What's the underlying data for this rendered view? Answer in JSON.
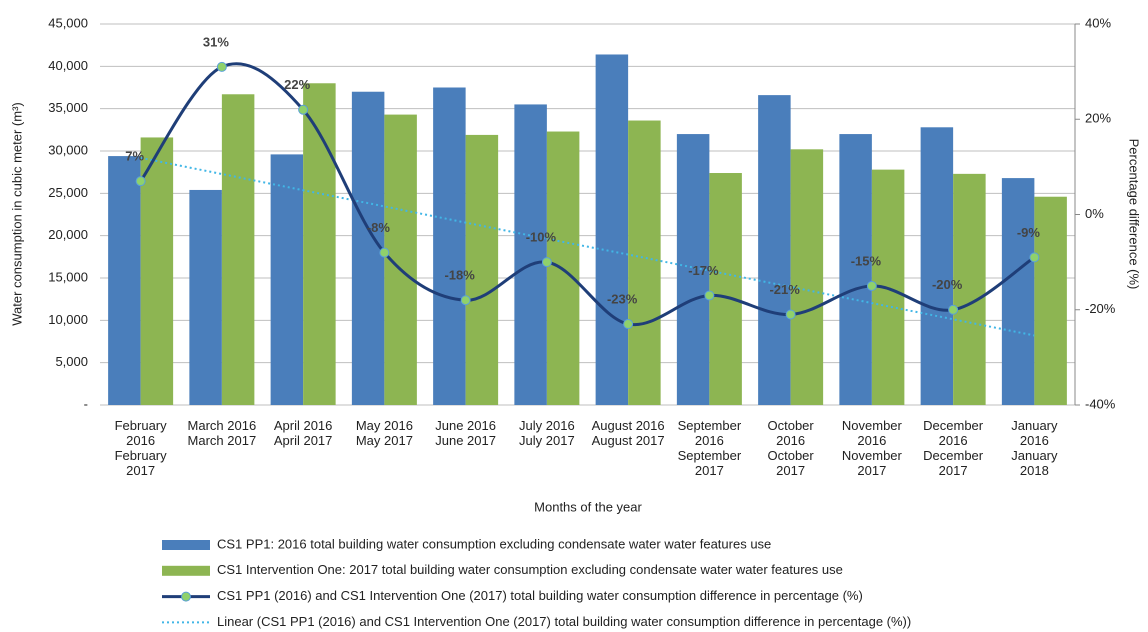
{
  "chart_data": {
    "type": "bar",
    "xlabel": "Months of the year",
    "ylabel": "Water consumption in cubic meter (m³)",
    "y2label": "Percentage difference (%)",
    "categories": [
      "February 2016 February 2017",
      "March 2016 March 2017",
      "April 2016 April 2017",
      "May 2016 May 2017",
      "June 2016 June 2017",
      "July 2016 July 2017",
      "August 2016 August 2017",
      "September 2016 September 2017",
      "October 2016 October 2017",
      "November 2016 November 2017",
      "December 2016 December 2017",
      "January 2016 January 2018"
    ],
    "ylim": [
      0,
      45000
    ],
    "yticks": [
      {
        "value": 0,
        "label": "-"
      },
      {
        "value": 5000,
        "label": "5,000"
      },
      {
        "value": 10000,
        "label": "10,000"
      },
      {
        "value": 15000,
        "label": "15,000"
      },
      {
        "value": 20000,
        "label": "20,000"
      },
      {
        "value": 25000,
        "label": "25,000"
      },
      {
        "value": 30000,
        "label": "30,000"
      },
      {
        "value": 35000,
        "label": "35,000"
      },
      {
        "value": 40000,
        "label": "40,000"
      },
      {
        "value": 45000,
        "label": "45,000"
      }
    ],
    "y2lim": [
      -40,
      40
    ],
    "y2ticks": [
      {
        "value": -40,
        "label": "-40%"
      },
      {
        "value": -20,
        "label": "-20%"
      },
      {
        "value": 0,
        "label": "0%"
      },
      {
        "value": 20,
        "label": "20%"
      },
      {
        "value": 40,
        "label": "40%"
      }
    ],
    "grid": true,
    "series": [
      {
        "name": "CS1 PP1: 2016 total building water consumption excluding condensate water water features use",
        "type": "bar",
        "color": "#4a7ebb",
        "values": [
          29400,
          25400,
          29600,
          37000,
          37500,
          35500,
          41400,
          32000,
          36600,
          32000,
          32800,
          26800
        ]
      },
      {
        "name": "CS1 Intervention One: 2017 total building water consumption excluding condensate water water features use",
        "type": "bar",
        "color": "#8db552",
        "values": [
          31600,
          36700,
          38000,
          34300,
          31900,
          32300,
          33600,
          27400,
          30200,
          27800,
          27300,
          24600
        ]
      },
      {
        "name": "CS1 PP1 (2016) and CS1 Intervention One (2017) total building water consumption difference in percentage (%)",
        "type": "line",
        "axis": "y2",
        "color": "#1f3e78",
        "marker_color": "#8fd16b",
        "values": [
          7,
          31,
          22,
          -8,
          -18,
          -10,
          -23,
          -17,
          -21,
          -15,
          -20,
          -9
        ],
        "value_labels": [
          "7%",
          "31%",
          "22%",
          "-8%",
          "-18%",
          "-10%",
          "-23%",
          "-17%",
          "-21%",
          "-15%",
          "-20%",
          "-9%"
        ]
      },
      {
        "name": "Linear (CS1 PP1 (2016) and CS1 Intervention One (2017) total building water consumption difference in percentage (%))",
        "type": "trend",
        "axis": "y2",
        "color": "#41b6e6",
        "values": [
          11.9,
          8.5,
          5.1,
          1.7,
          -1.7,
          -5.1,
          -8.4,
          -11.8,
          -15.2,
          -18.6,
          -22.0,
          -25.4
        ]
      }
    ]
  }
}
